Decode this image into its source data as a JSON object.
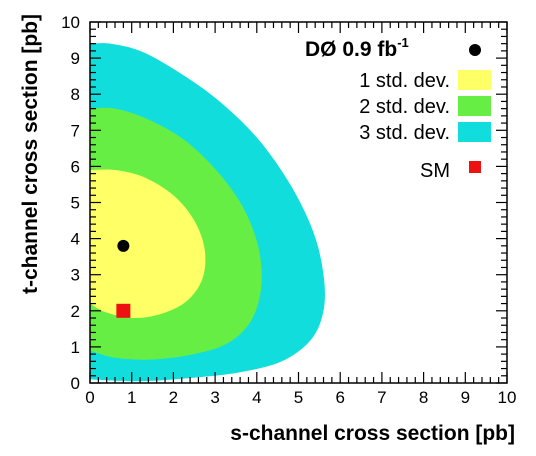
{
  "chart_data": {
    "type": "contour",
    "xlabel": "s-channel cross section [pb]",
    "ylabel": "t-channel cross section [pb]",
    "xlim": [
      0,
      10
    ],
    "ylim": [
      0,
      10
    ],
    "xticks": [
      "0",
      "1",
      "2",
      "3",
      "4",
      "5",
      "6",
      "7",
      "8",
      "9",
      "10"
    ],
    "yticks": [
      "0",
      "1",
      "2",
      "3",
      "4",
      "5",
      "6",
      "7",
      "8",
      "9",
      "10"
    ],
    "grid": false,
    "legend_placement": "top-right",
    "legend": {
      "title_prefix": "DØ 0.9 fb",
      "title_exponent": "-1",
      "entries": [
        {
          "label": "1 std. dev.",
          "color": "#ffff66"
        },
        {
          "label": "2 std. dev.",
          "color": "#66ee44"
        },
        {
          "label": "3 std. dev.",
          "color": "#11dddd"
        },
        {
          "label": "SM",
          "color": "#ee1111"
        }
      ]
    },
    "measurement": {
      "x": 0.8,
      "y": 3.8,
      "color": "#000000"
    },
    "sm_point": {
      "x": 0.8,
      "y": 2.0,
      "color": "#ee1111"
    },
    "contours": [
      {
        "level": "3 std. dev.",
        "color": "#11dddd",
        "points": [
          [
            0,
            9.4
          ],
          [
            0.5,
            9.4
          ],
          [
            1.2,
            9.2
          ],
          [
            2.0,
            8.7
          ],
          [
            3.0,
            7.9
          ],
          [
            4.0,
            6.8
          ],
          [
            4.8,
            5.5
          ],
          [
            5.35,
            4.2
          ],
          [
            5.6,
            3.0
          ],
          [
            5.6,
            2.0
          ],
          [
            5.3,
            1.2
          ],
          [
            4.6,
            0.6
          ],
          [
            3.6,
            0.3
          ],
          [
            2.5,
            0.15
          ],
          [
            1.2,
            0.05
          ],
          [
            0,
            0.1
          ]
        ]
      },
      {
        "level": "2 std. dev.",
        "color": "#66ee44",
        "points": [
          [
            0,
            7.6
          ],
          [
            0.6,
            7.6
          ],
          [
            1.4,
            7.3
          ],
          [
            2.3,
            6.7
          ],
          [
            3.1,
            5.8
          ],
          [
            3.7,
            4.8
          ],
          [
            4.05,
            3.7
          ],
          [
            4.1,
            2.6
          ],
          [
            3.85,
            1.7
          ],
          [
            3.3,
            1.1
          ],
          [
            2.5,
            0.8
          ],
          [
            1.5,
            0.65
          ],
          [
            0.6,
            0.7
          ],
          [
            0,
            0.9
          ]
        ]
      },
      {
        "level": "1 std. dev.",
        "color": "#ffff66",
        "points": [
          [
            0,
            5.9
          ],
          [
            0.6,
            5.9
          ],
          [
            1.3,
            5.7
          ],
          [
            2.0,
            5.2
          ],
          [
            2.5,
            4.5
          ],
          [
            2.75,
            3.7
          ],
          [
            2.7,
            2.9
          ],
          [
            2.35,
            2.3
          ],
          [
            1.8,
            1.95
          ],
          [
            1.1,
            1.8
          ],
          [
            0.4,
            1.95
          ],
          [
            0,
            2.2
          ]
        ]
      }
    ]
  }
}
